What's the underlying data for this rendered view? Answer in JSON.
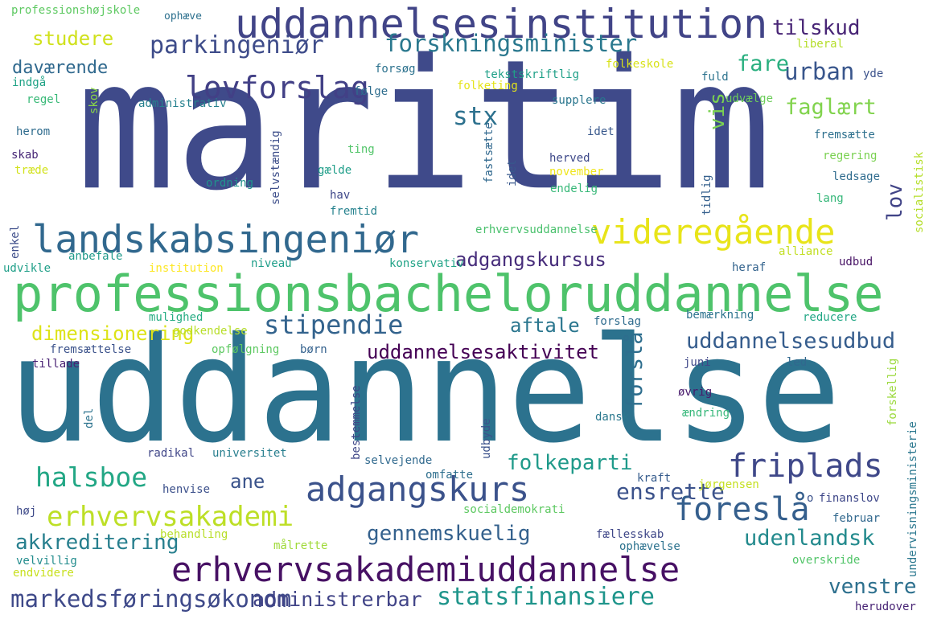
{
  "words": [
    {
      "text": "maritim",
      "color": "#3f4a8a"
    },
    {
      "text": "uddannelse",
      "color": "#2c728e"
    },
    {
      "text": "professionsbacheloruddannelse",
      "color": "#4ec36b"
    },
    {
      "text": "uddannelsesinstitution",
      "color": "#414487"
    },
    {
      "text": "landskabsingeniør",
      "color": "#31688e"
    },
    {
      "text": "videregående",
      "color": "#e8e419"
    },
    {
      "text": "adgangskurs",
      "color": "#3b528b"
    },
    {
      "text": "erhvervsakademiuddannelse",
      "color": "#471164"
    },
    {
      "text": "erhvervsakademi",
      "color": "#bddf26"
    },
    {
      "text": "forskningsminister",
      "color": "#2a788e"
    },
    {
      "text": "parkingeniør",
      "color": "#3e4c8a"
    },
    {
      "text": "lovforslag",
      "color": "#424086"
    },
    {
      "text": "studere",
      "color": "#d0e11c"
    },
    {
      "text": "tilskud",
      "color": "#482576"
    },
    {
      "text": "stipendie",
      "color": "#33638d"
    },
    {
      "text": "friplads",
      "color": "#3f4889"
    },
    {
      "text": "foreslå",
      "color": "#355f8d"
    },
    {
      "text": "adgangskursus",
      "color": "#472d7b"
    },
    {
      "text": "uddannelsesaktivitet",
      "color": "#440154"
    },
    {
      "text": "uddannelsesudbud",
      "color": "#365d8d"
    },
    {
      "text": "dimensionering",
      "color": "#dde318"
    },
    {
      "text": "halsboe",
      "color": "#22a785"
    },
    {
      "text": "folkeparti",
      "color": "#1f9a8a"
    },
    {
      "text": "gennemskuelig",
      "color": "#34618d"
    },
    {
      "text": "statsfinansiere",
      "color": "#1f958b"
    },
    {
      "text": "markedsføringsøkonom",
      "color": "#3e4989"
    },
    {
      "text": "administrerbar",
      "color": "#414487"
    },
    {
      "text": "akkreditering",
      "color": "#277f8e"
    },
    {
      "text": "udenlandsk",
      "color": "#238a8d"
    },
    {
      "text": "venstre",
      "color": "#2d708e"
    },
    {
      "text": "aftale",
      "color": "#2a768e"
    },
    {
      "text": "faglært",
      "color": "#81d34d"
    },
    {
      "text": "urban",
      "color": "#39568c"
    },
    {
      "text": "fare",
      "color": "#29af7f"
    },
    {
      "text": "stx",
      "color": "#2d718e"
    },
    {
      "text": "vis",
      "color": "#7ad151"
    },
    {
      "text": "ensrette",
      "color": "#3b528b"
    },
    {
      "text": "ane",
      "color": "#3a538b"
    },
    {
      "text": "lov",
      "color": "#414487"
    },
    {
      "text": "forslå",
      "color": "#2e6e8e"
    },
    {
      "text": "daværende",
      "color": "#30698e"
    },
    {
      "text": "professionshøjskole",
      "color": "#5ec962"
    },
    {
      "text": "ophæve",
      "color": "#2d708e"
    },
    {
      "text": "liberal",
      "color": "#b5de2b"
    },
    {
      "text": "folkeskole",
      "color": "#d8e219"
    },
    {
      "text": "folketing",
      "color": "#e5e419"
    },
    {
      "text": "forsøg",
      "color": "#2c728e"
    },
    {
      "text": "følge",
      "color": "#2e6d8e"
    },
    {
      "text": "tekstskriftlig",
      "color": "#1fa088"
    },
    {
      "text": "fuld",
      "color": "#2c738e"
    },
    {
      "text": "yde",
      "color": "#3b528b"
    },
    {
      "text": "indgå",
      "color": "#20a386"
    },
    {
      "text": "regel",
      "color": "#38b977"
    },
    {
      "text": "skov",
      "color": "#89d548"
    },
    {
      "text": "administrativ",
      "color": "#26818e"
    },
    {
      "text": "supplere",
      "color": "#2a768e"
    },
    {
      "text": "udvælge",
      "color": "#6ccd5a"
    },
    {
      "text": "herom",
      "color": "#2f6c8e"
    },
    {
      "text": "skab",
      "color": "#482878"
    },
    {
      "text": "træde",
      "color": "#d2e21b"
    },
    {
      "text": "selvstændig",
      "color": "#3d4e8a"
    },
    {
      "text": "fastsætte",
      "color": "#31688e"
    },
    {
      "text": "idet",
      "color": "#38588c"
    },
    {
      "text": "ting",
      "color": "#52c569"
    },
    {
      "text": "herved",
      "color": "#3e4989"
    },
    {
      "text": "november",
      "color": "#efe51c"
    },
    {
      "text": "endelig",
      "color": "#37b878"
    },
    {
      "text": "fremsætte",
      "color": "#2d708e"
    },
    {
      "text": "regering",
      "color": "#7ad151"
    },
    {
      "text": "ledsage",
      "color": "#2f6b8e"
    },
    {
      "text": "lang",
      "color": "#35b779"
    },
    {
      "text": "tidlig",
      "color": "#35608d"
    },
    {
      "text": "socialistisk",
      "color": "#b5de2b"
    },
    {
      "text": "gælde",
      "color": "#1f9e89"
    },
    {
      "text": "ordning",
      "color": "#20928c"
    },
    {
      "text": "hav",
      "color": "#3f4889"
    },
    {
      "text": "fremtid",
      "color": "#26828e"
    },
    {
      "text": "enkel",
      "color": "#3d4d8a"
    },
    {
      "text": "anbefale",
      "color": "#1f998a"
    },
    {
      "text": "erhvervsuddannelse",
      "color": "#4ac16d"
    },
    {
      "text": "udvikle",
      "color": "#1f9f88"
    },
    {
      "text": "institution",
      "color": "#fde725"
    },
    {
      "text": "niveau",
      "color": "#1f9e89"
    },
    {
      "text": "konservativ",
      "color": "#20a386"
    },
    {
      "text": "heraf",
      "color": "#33638d"
    },
    {
      "text": "alliance",
      "color": "#c2df23"
    },
    {
      "text": "udbud",
      "color": "#471365"
    },
    {
      "text": "mulighed",
      "color": "#25ac82"
    },
    {
      "text": "godkendelse",
      "color": "#b8de29"
    },
    {
      "text": "forslag",
      "color": "#2f6c8e"
    },
    {
      "text": "bemærkning",
      "color": "#2c738e"
    },
    {
      "text": "reducere",
      "color": "#22a785"
    },
    {
      "text": "fremsættelse",
      "color": "#3b528b"
    },
    {
      "text": "opfølgning",
      "color": "#5ec962"
    },
    {
      "text": "børn",
      "color": "#34618d"
    },
    {
      "text": "tillade",
      "color": "#482173"
    },
    {
      "text": "juni",
      "color": "#3f4788"
    },
    {
      "text": "led",
      "color": "#31688e"
    },
    {
      "text": "del",
      "color": "#2c738e"
    },
    {
      "text": "bestemmelse",
      "color": "#3f4788"
    },
    {
      "text": "godkende",
      "color": "#dde318"
    },
    {
      "text": "øvrig",
      "color": "#481a6c"
    },
    {
      "text": "dansk",
      "color": "#2a788e"
    },
    {
      "text": "ændring",
      "color": "#35b779"
    },
    {
      "text": "forskellig",
      "color": "#9bd93c"
    },
    {
      "text": "undervisningsministerie",
      "color": "#2a778e"
    },
    {
      "text": "radikal",
      "color": "#404688"
    },
    {
      "text": "universitet",
      "color": "#277e8e"
    },
    {
      "text": "selvejende",
      "color": "#30698e"
    },
    {
      "text": "udbyde",
      "color": "#3b518b"
    },
    {
      "text": "omfatte",
      "color": "#2e6f8e"
    },
    {
      "text": "kraft",
      "color": "#365c8d"
    },
    {
      "text": "jørgensen",
      "color": "#c5e021"
    },
    {
      "text": "henvise",
      "color": "#3c508b"
    },
    {
      "text": "finanslov",
      "color": "#3f4889"
    },
    {
      "text": "o",
      "color": "#3b528b"
    },
    {
      "text": "høj",
      "color": "#3e4a89"
    },
    {
      "text": "socialdemokrati",
      "color": "#5ec962"
    },
    {
      "text": "februar",
      "color": "#31688e"
    },
    {
      "text": "behandling",
      "color": "#b8de29"
    },
    {
      "text": "fællesskab",
      "color": "#3f4788"
    },
    {
      "text": "målrette",
      "color": "#a0da39"
    },
    {
      "text": "ophævelse",
      "color": "#2c728e"
    },
    {
      "text": "velvillig",
      "color": "#228c8d"
    },
    {
      "text": "overskride",
      "color": "#52c569"
    },
    {
      "text": "endvidere",
      "color": "#c8e020"
    },
    {
      "text": "herudover",
      "color": "#482475"
    }
  ]
}
